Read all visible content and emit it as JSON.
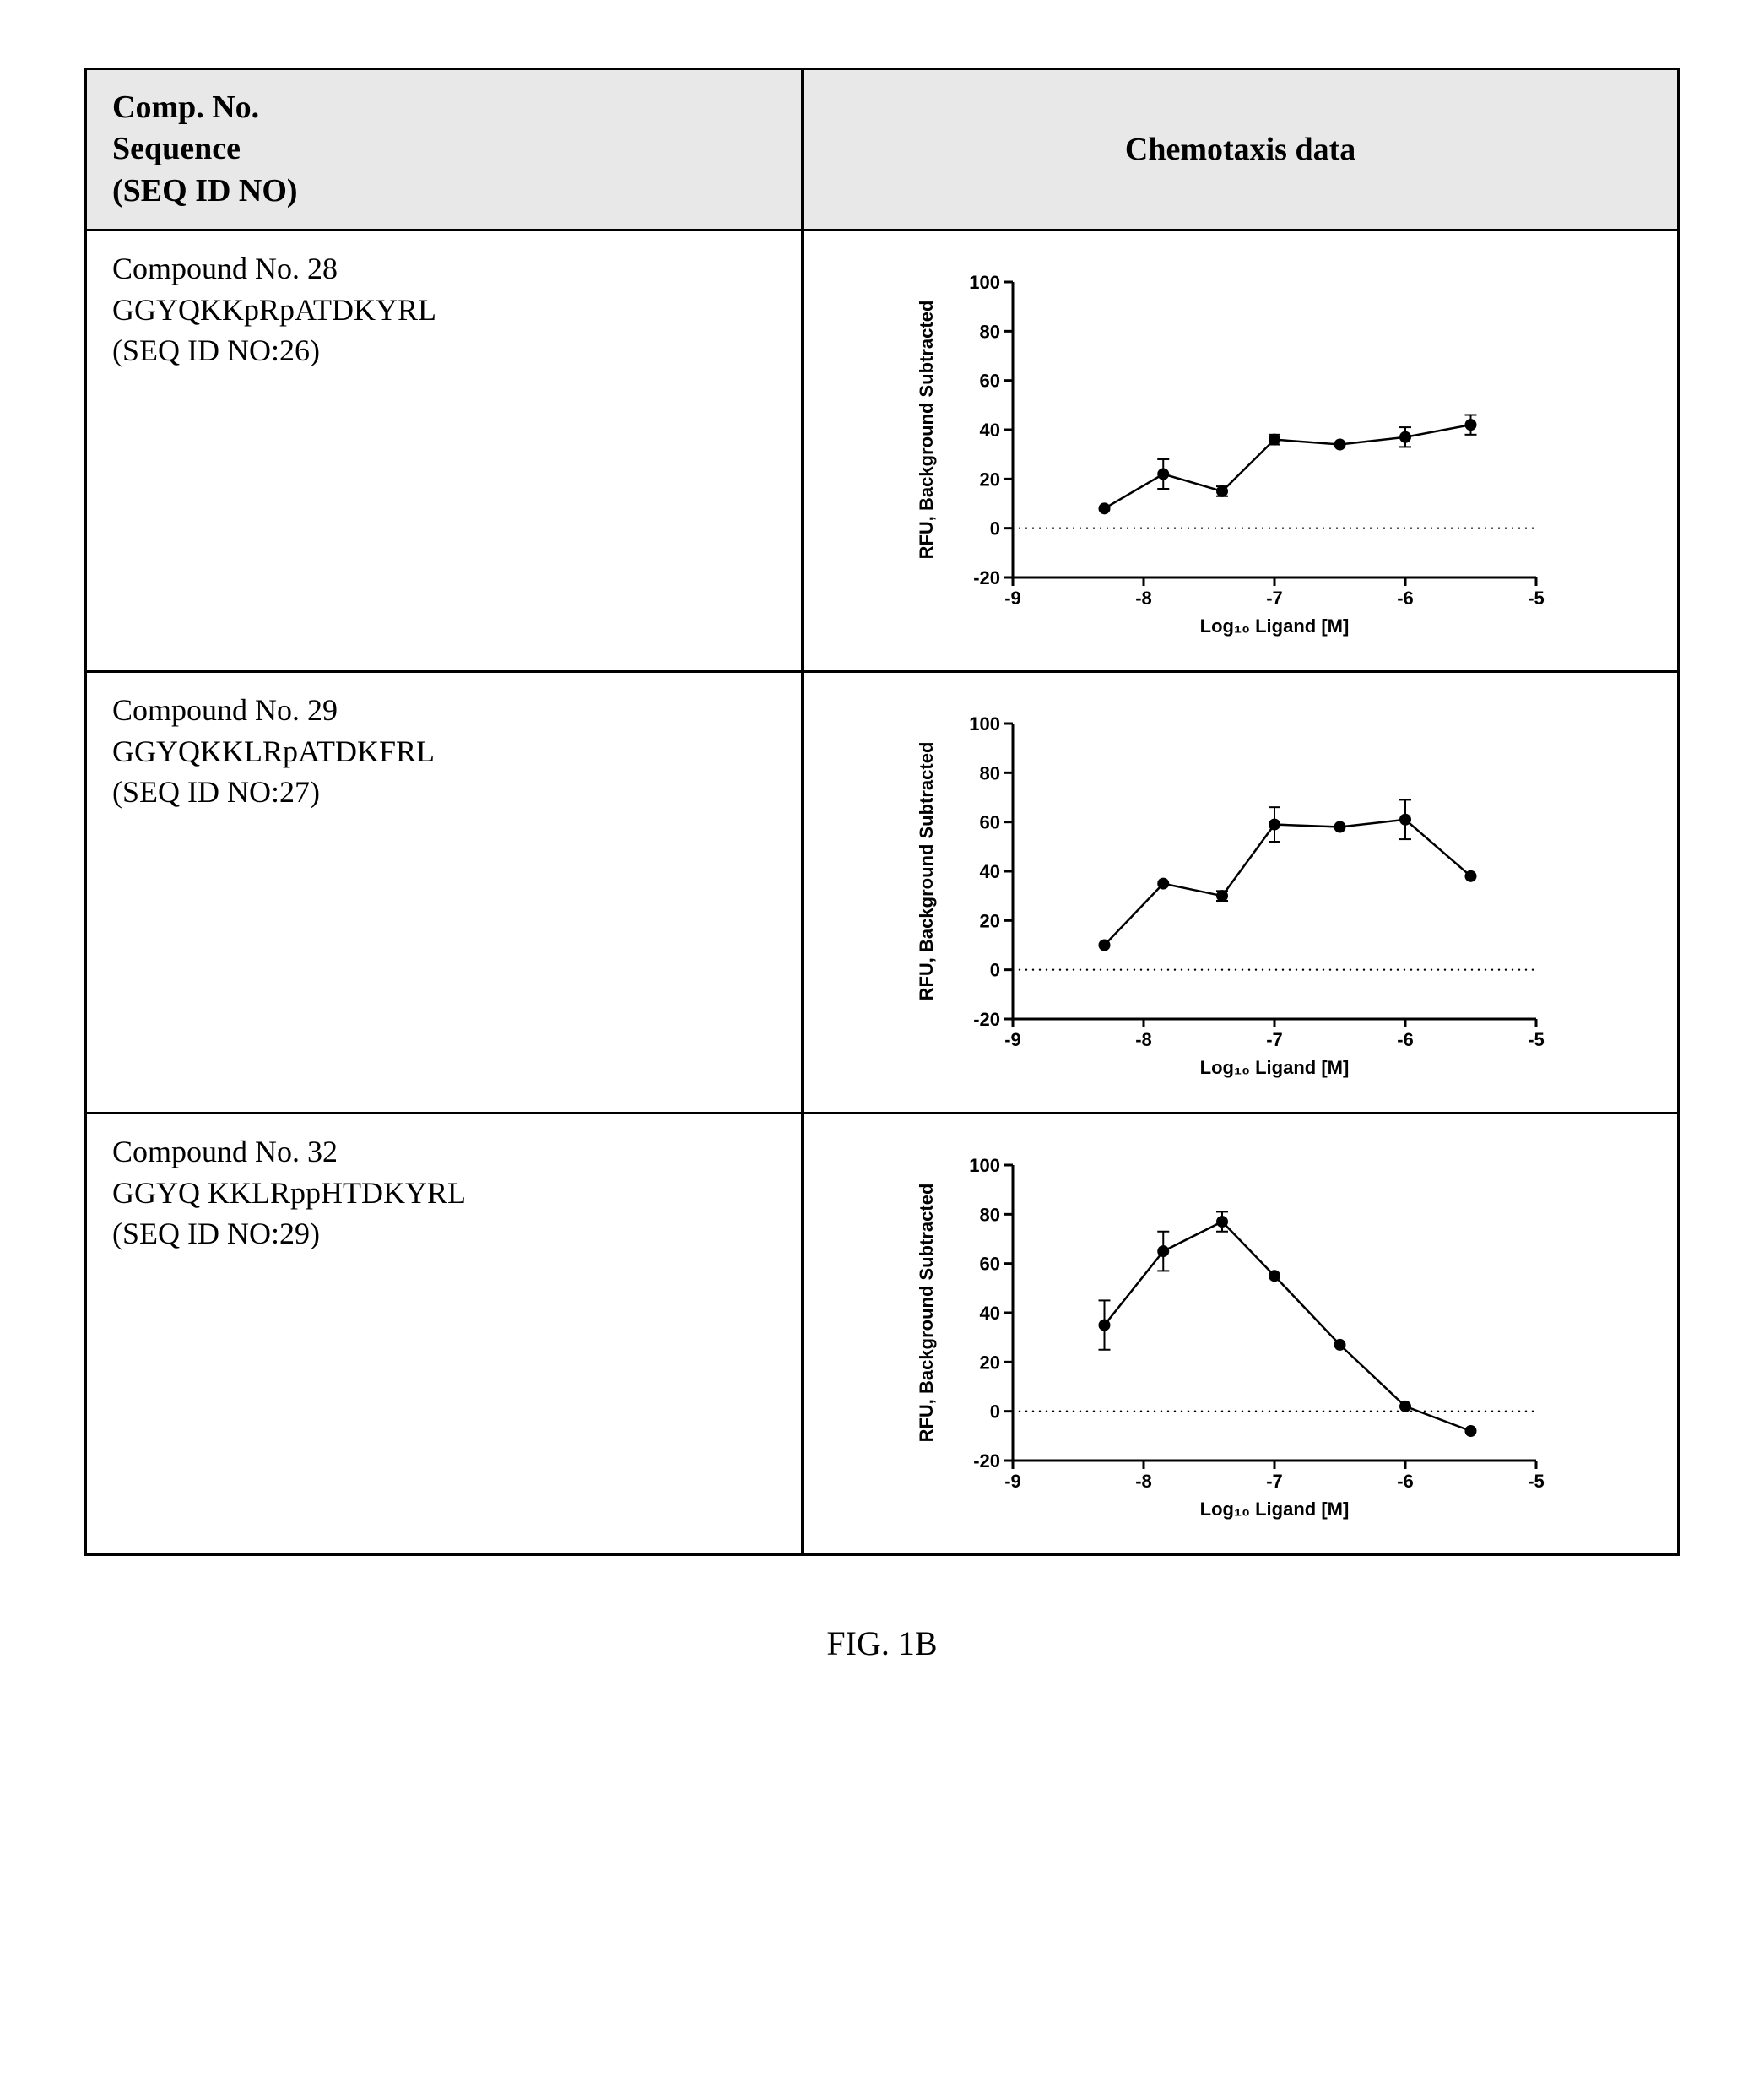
{
  "header": {
    "left_line1": "Comp. No.",
    "left_line2": "Sequence",
    "left_line3": "(SEQ ID NO)",
    "right": "Chemotaxis data"
  },
  "rows": [
    {
      "compound_no": "Compound No. 28",
      "sequence": "GGYQKKpRpATDKYRL",
      "seq_id": "(SEQ ID NO:26)"
    },
    {
      "compound_no": "Compound No. 29",
      "sequence": "GGYQKKLRpATDKFRL",
      "seq_id": "(SEQ ID NO:27)"
    },
    {
      "compound_no": "Compound No. 32",
      "sequence": "GGYQ KKLRppHTDKYRL",
      "seq_id": "(SEQ ID NO:29)"
    }
  ],
  "charts": [
    {
      "type": "line",
      "ylabel": "RFU, Background Subtracted",
      "xlabel": "Log₁₀ Ligand [M]",
      "ylim": [
        -20,
        100
      ],
      "ytick_step": 20,
      "xlim": [
        -9,
        -5
      ],
      "xtick_step": 1,
      "background_color": "#ffffff",
      "line_color": "#000000",
      "marker_color": "#000000",
      "marker_size": 7,
      "line_width": 2.5,
      "axis_color": "#000000",
      "axis_width": 3,
      "tick_fontsize": 22,
      "label_fontsize": 22,
      "label_fontweight": "bold",
      "data": [
        {
          "x": -8.3,
          "y": 8,
          "err": 0
        },
        {
          "x": -7.85,
          "y": 22,
          "err": 6
        },
        {
          "x": -7.4,
          "y": 15,
          "err": 2
        },
        {
          "x": -7.0,
          "y": 36,
          "err": 2
        },
        {
          "x": -6.5,
          "y": 34,
          "err": 0
        },
        {
          "x": -6.0,
          "y": 37,
          "err": 4
        },
        {
          "x": -5.5,
          "y": 42,
          "err": 4
        }
      ]
    },
    {
      "type": "line",
      "ylabel": "RFU, Background Subtracted",
      "xlabel": "Log₁₀ Ligand [M]",
      "ylim": [
        -20,
        100
      ],
      "ytick_step": 20,
      "xlim": [
        -9,
        -5
      ],
      "xtick_step": 1,
      "background_color": "#ffffff",
      "line_color": "#000000",
      "marker_color": "#000000",
      "marker_size": 7,
      "line_width": 2.5,
      "axis_color": "#000000",
      "axis_width": 3,
      "tick_fontsize": 22,
      "label_fontsize": 22,
      "label_fontweight": "bold",
      "data": [
        {
          "x": -8.3,
          "y": 10,
          "err": 0
        },
        {
          "x": -7.85,
          "y": 35,
          "err": 0
        },
        {
          "x": -7.4,
          "y": 30,
          "err": 2
        },
        {
          "x": -7.0,
          "y": 59,
          "err": 7
        },
        {
          "x": -6.5,
          "y": 58,
          "err": 0
        },
        {
          "x": -6.0,
          "y": 61,
          "err": 8
        },
        {
          "x": -5.5,
          "y": 38,
          "err": 0
        }
      ]
    },
    {
      "type": "line",
      "ylabel": "RFU, Background Subtracted",
      "xlabel": "Log₁₀ Ligand [M]",
      "ylim": [
        -20,
        100
      ],
      "ytick_step": 20,
      "xlim": [
        -9,
        -5
      ],
      "xtick_step": 1,
      "background_color": "#ffffff",
      "line_color": "#000000",
      "marker_color": "#000000",
      "marker_size": 7,
      "line_width": 2.5,
      "axis_color": "#000000",
      "axis_width": 3,
      "tick_fontsize": 22,
      "label_fontsize": 22,
      "label_fontweight": "bold",
      "data": [
        {
          "x": -8.3,
          "y": 35,
          "err": 10
        },
        {
          "x": -7.85,
          "y": 65,
          "err": 8
        },
        {
          "x": -7.4,
          "y": 77,
          "err": 4
        },
        {
          "x": -7.0,
          "y": 55,
          "err": 0
        },
        {
          "x": -6.5,
          "y": 27,
          "err": 0
        },
        {
          "x": -6.0,
          "y": 2,
          "err": 0
        },
        {
          "x": -5.5,
          "y": -8,
          "err": 0
        }
      ]
    }
  ],
  "figure_label": "FIG. 1B"
}
